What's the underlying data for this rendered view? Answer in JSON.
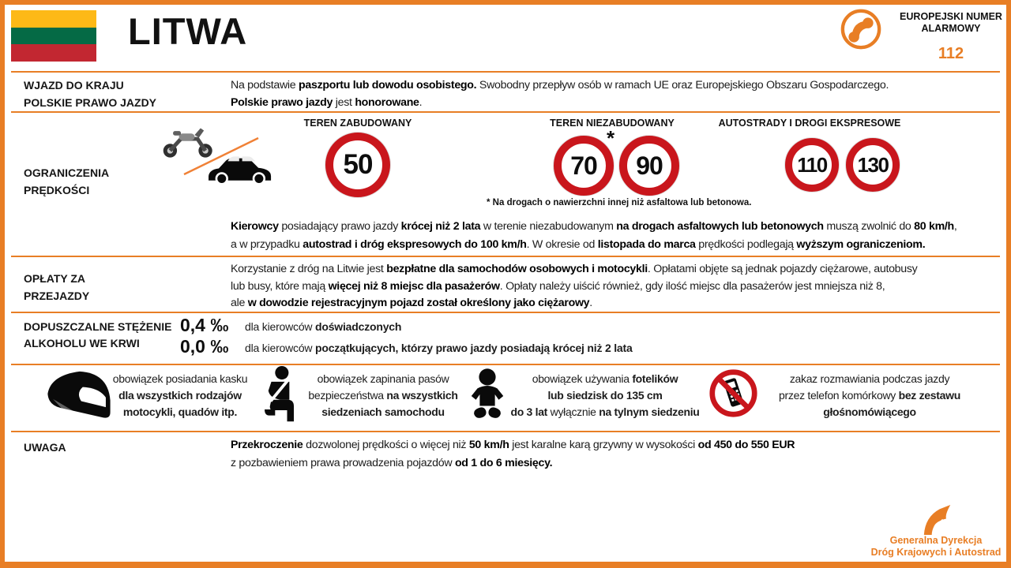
{
  "colors": {
    "accent": "#E87E25",
    "sign_red": "#C9161C",
    "flag_yellow": "#FDB917",
    "flag_green": "#056A45",
    "flag_red": "#C22731"
  },
  "header": {
    "title": "LITWA",
    "emergency_line1": "EUROPEJSKI NUMER",
    "emergency_line2": "ALARMOWY",
    "emergency_number": "112"
  },
  "entry": {
    "label1": "WJAZD DO KRAJU",
    "label2": "POLSKIE PRAWO JAZDY",
    "line1": [
      {
        "t": "Na podstawie ",
        "b": 0
      },
      {
        "t": "paszportu lub dowodu osobistego.",
        "b": 1
      },
      {
        "t": " Swobodny przepływ osób w ramach UE oraz Europejskiego Obszaru Gospodarczego.",
        "b": 0
      }
    ],
    "line2": [
      {
        "t": "Polskie prawo jazdy",
        "b": 1
      },
      {
        "t": " jest ",
        "b": 0
      },
      {
        "t": "honorowane",
        "b": 1
      },
      {
        "t": ".",
        "b": 0
      }
    ]
  },
  "speed": {
    "label1": "OGRANICZENIA",
    "label2": "PRĘDKOŚCI",
    "col1_header": "TEREN ZABUDOWANY",
    "col2_header": "TEREN NIEZABUDOWANY",
    "col3_header": "AUTOSTRADY I DROGI EKSPRESOWE",
    "sign_urban": "50",
    "sign_rural1": "70",
    "sign_rural2": "90",
    "sign_motorway1": "110",
    "sign_motorway2": "130",
    "asterisk": "*",
    "footnote": "* Na drogach o nawierzchni innej niż asfaltowa lub betonowa.",
    "line1": [
      {
        "t": "Kierowcy",
        "b": 1
      },
      {
        "t": " posiadający prawo jazdy ",
        "b": 0
      },
      {
        "t": "krócej niż 2 lata",
        "b": 1
      },
      {
        "t": " w terenie niezabudowanym ",
        "b": 0
      },
      {
        "t": "na drogach asfaltowych lub betonowych",
        "b": 1
      },
      {
        "t": " muszą zwolnić do ",
        "b": 0
      },
      {
        "t": "80 km/h",
        "b": 1
      },
      {
        "t": ",",
        "b": 0
      }
    ],
    "line2": [
      {
        "t": "a w przypadku ",
        "b": 0
      },
      {
        "t": "autostrad i dróg ekspresowych do 100 km/h",
        "b": 1
      },
      {
        "t": ". W okresie od ",
        "b": 0
      },
      {
        "t": "listopada do marca",
        "b": 1
      },
      {
        "t": " prędkości podlegają ",
        "b": 0
      },
      {
        "t": "wyższym ograniczeniom.",
        "b": 1
      }
    ]
  },
  "tolls": {
    "label1": "OPŁATY ZA",
    "label2": "PRZEJAZDY",
    "line1": [
      {
        "t": "Korzystanie z dróg na Litwie jest ",
        "b": 0
      },
      {
        "t": "bezpłatne dla samochodów osobowych i motocykli",
        "b": 1
      },
      {
        "t": ". Opłatami objęte są jednak pojazdy ciężarowe, autobusy",
        "b": 0
      }
    ],
    "line2": [
      {
        "t": "lub busy, które mają ",
        "b": 0
      },
      {
        "t": "więcej niż 8 miejsc dla pasażerów",
        "b": 1
      },
      {
        "t": ". Opłaty należy uiścić również, gdy ilość miejsc dla pasażerów jest mniejsza niż 8,",
        "b": 0
      }
    ],
    "line3": [
      {
        "t": "ale ",
        "b": 0
      },
      {
        "t": "w dowodzie rejestracyjnym pojazd został określony jako ciężarowy",
        "b": 1
      },
      {
        "t": ".",
        "b": 0
      }
    ]
  },
  "alcohol": {
    "label1": "DOPUSZCZALNE STĘŻENIE",
    "label2": "ALKOHOLU WE KRWI",
    "rows": [
      {
        "value": "0,4 ‰",
        "desc": [
          {
            "t": "dla kierowców ",
            "b": 0
          },
          {
            "t": "doświadczonych",
            "b": 1
          }
        ]
      },
      {
        "value": "0,0 ‰",
        "desc": [
          {
            "t": "dla kierowców ",
            "b": 0
          },
          {
            "t": "początkujących, którzy prawo jazdy posiadają krócej niż 2 lata",
            "b": 1
          }
        ]
      }
    ]
  },
  "rules": [
    {
      "icon": "helmet-icon",
      "lines": [
        [
          {
            "t": "obowiązek posiadania kasku",
            "b": 0
          }
        ],
        [
          {
            "t": "dla wszystkich rodzajów",
            "b": 1
          }
        ],
        [
          {
            "t": "motocykli, quadów itp.",
            "b": 1
          }
        ]
      ]
    },
    {
      "icon": "seatbelt-icon",
      "lines": [
        [
          {
            "t": "obowiązek zapinania pasów",
            "b": 0
          }
        ],
        [
          {
            "t": "bezpieczeństwa ",
            "b": 0
          },
          {
            "t": "na wszystkich",
            "b": 1
          }
        ],
        [
          {
            "t": "siedzeniach samochodu",
            "b": 1
          }
        ]
      ]
    },
    {
      "icon": "child-seat-icon",
      "lines": [
        [
          {
            "t": "obowiązek używania ",
            "b": 0
          },
          {
            "t": "fotelików",
            "b": 1
          }
        ],
        [
          {
            "t": "lub siedzisk do 135 cm",
            "b": 1
          }
        ],
        [
          {
            "t": "do 3 lat",
            "b": 1
          },
          {
            "t": " wyłącznie ",
            "b": 0
          },
          {
            "t": "na tylnym siedzeniu",
            "b": 1
          }
        ]
      ]
    },
    {
      "icon": "no-phone-icon",
      "lines": [
        [
          {
            "t": "zakaz rozmawiania podczas jazdy",
            "b": 0
          }
        ],
        [
          {
            "t": "przez telefon komórkowy ",
            "b": 0
          },
          {
            "t": "bez zestawu",
            "b": 1
          }
        ],
        [
          {
            "t": "głośnomówiącego",
            "b": 1
          }
        ]
      ]
    }
  ],
  "warning": {
    "label": "UWAGA",
    "line1": [
      {
        "t": "Przekroczenie",
        "b": 1
      },
      {
        "t": " dozwolonej prędkości o więcej niż ",
        "b": 0
      },
      {
        "t": "50 km/h",
        "b": 1
      },
      {
        "t": " jest karalne karą grzywny w wysokości ",
        "b": 0
      },
      {
        "t": "od 450 do 550 EUR",
        "b": 1
      }
    ],
    "line2": [
      {
        "t": "z pozbawieniem prawa prowadzenia pojazdów ",
        "b": 0
      },
      {
        "t": "od 1 do 6 miesięcy.",
        "b": 1
      }
    ]
  },
  "footer": {
    "org_line1": "Generalna Dyrekcja",
    "org_line2": "Dróg Krajowych i Autostrad"
  }
}
